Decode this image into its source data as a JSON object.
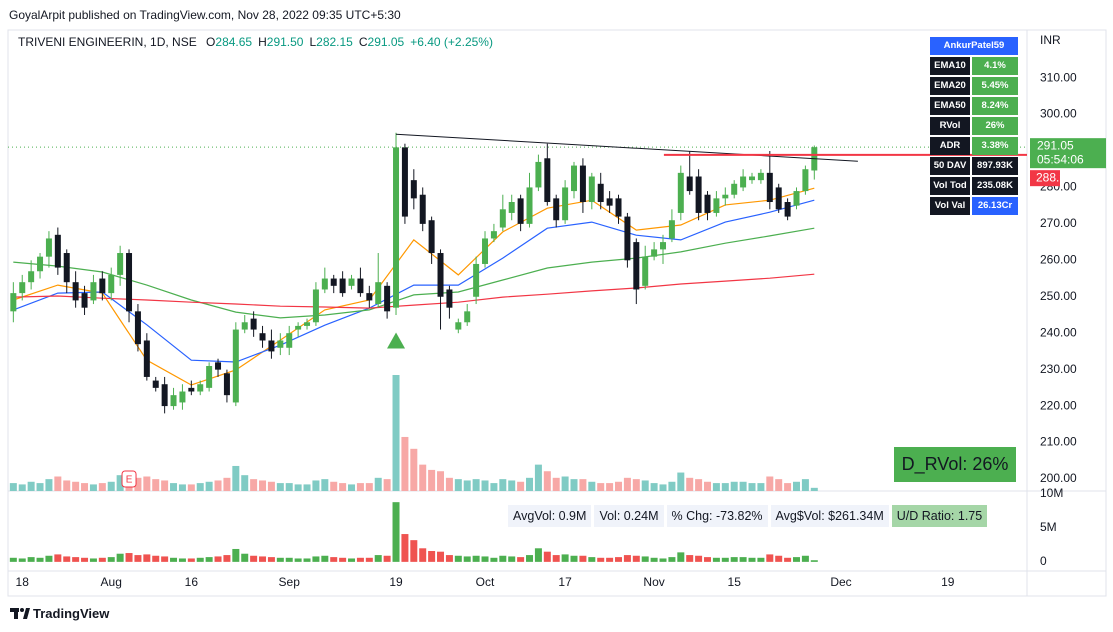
{
  "header": {
    "publisher": "GoyalArpit published on TradingView.com, Nov 28, 2022 09:35 UTC+5:30"
  },
  "chart_data": {
    "type": "candlestick",
    "symbol": "TRIVENI ENGINEERIN, 1D, NSE",
    "ohlc_legend": [
      {
        "key": "O",
        "value": "284.65"
      },
      {
        "key": "H",
        "value": "291.50"
      },
      {
        "key": "L",
        "value": "282.15"
      },
      {
        "key": "C",
        "value": "291.05"
      }
    ],
    "change": "+6.40 (+2.25%)",
    "y_unit": "INR",
    "up_color": "#4caf50",
    "down_color": "#131722",
    "open": [
      246,
      251,
      254,
      257,
      261,
      267,
      262,
      254,
      251,
      249,
      255,
      251,
      256,
      262,
      246,
      238,
      227,
      226,
      220,
      221,
      225,
      224,
      225,
      232,
      229,
      221,
      241,
      244,
      240,
      238,
      236,
      236,
      241,
      242,
      243,
      252,
      255,
      255,
      253,
      255,
      251,
      248,
      253,
      247,
      291,
      282,
      278,
      271,
      262,
      252,
      241,
      243,
      250,
      259,
      266,
      269,
      273,
      277,
      270,
      280,
      288,
      277,
      271,
      279,
      286,
      276,
      281,
      277,
      277,
      272,
      265,
      253,
      261,
      263,
      266,
      273,
      283,
      283,
      278,
      273,
      277,
      278,
      280,
      282,
      282,
      284,
      280,
      276,
      275,
      279,
      284.65
    ],
    "high": [
      254,
      256,
      260,
      262,
      268,
      269,
      263,
      257,
      253,
      256,
      257,
      258,
      264,
      263,
      248,
      240,
      228,
      228,
      225,
      226,
      227,
      227,
      232,
      233,
      230,
      243,
      245,
      246,
      242,
      241,
      240,
      242,
      243,
      244,
      254,
      258,
      256,
      257,
      256,
      258,
      253,
      262,
      254,
      295,
      292,
      285,
      280,
      272,
      263,
      253,
      244,
      248,
      261,
      268,
      270,
      278,
      278,
      278,
      284,
      289,
      292,
      278,
      282,
      287,
      288,
      284,
      284,
      279,
      278,
      273,
      266,
      264,
      265,
      267,
      274,
      286,
      290,
      285,
      279,
      279,
      280,
      282,
      285,
      284,
      285,
      290,
      281,
      277,
      280,
      286,
      291.5
    ],
    "low": [
      243,
      249,
      252,
      255,
      258,
      256,
      251,
      247,
      245,
      248,
      249,
      249,
      253,
      243,
      235,
      227,
      224,
      218,
      219,
      219,
      223,
      223,
      224,
      228,
      221,
      220,
      240,
      239,
      236,
      233,
      234,
      234,
      239,
      241,
      242,
      251,
      251,
      250,
      252,
      250,
      247,
      247,
      244,
      245,
      270,
      274,
      268,
      259,
      241,
      244,
      240,
      242,
      248,
      258,
      265,
      268,
      271,
      268,
      269,
      279,
      275,
      269,
      270,
      277,
      273,
      274,
      274,
      273,
      270,
      258,
      248,
      252,
      260,
      259,
      265,
      271,
      278,
      271,
      271,
      272,
      275,
      277,
      279,
      281,
      281,
      274,
      273,
      271,
      274,
      278,
      282.15
    ],
    "close": [
      251,
      254,
      257,
      261,
      266,
      258,
      254,
      249,
      247,
      254,
      251,
      256,
      262,
      246,
      237,
      228,
      225,
      220,
      223,
      224,
      224,
      226,
      231,
      230,
      223,
      241,
      243,
      241,
      238,
      235,
      238,
      240,
      242,
      243,
      252,
      255,
      253,
      251,
      255,
      251,
      249,
      254,
      246,
      291,
      272,
      277,
      270,
      262,
      250,
      247,
      243,
      246,
      259,
      266,
      268,
      274,
      276,
      270,
      280,
      287,
      276,
      271,
      280,
      286,
      276,
      283,
      276,
      275,
      272,
      260,
      252,
      261,
      263,
      265,
      271,
      284,
      279,
      273,
      273,
      277,
      278,
      281,
      283,
      283,
      284,
      276,
      274,
      272,
      279,
      285,
      291.05
    ],
    "xlim": [
      -0.6,
      113.9
    ],
    "xticks": [
      {
        "value": 1,
        "label": "18"
      },
      {
        "value": 11,
        "label": "Aug"
      },
      {
        "value": 20,
        "label": "16"
      },
      {
        "value": 31,
        "label": "Sep"
      },
      {
        "value": 43,
        "label": "19"
      },
      {
        "value": 53,
        "label": "Oct"
      },
      {
        "value": 62,
        "label": "17"
      },
      {
        "value": 72,
        "label": "Nov"
      },
      {
        "value": 81,
        "label": "15"
      },
      {
        "value": 93,
        "label": "Dec"
      },
      {
        "value": 105,
        "label": "19"
      }
    ],
    "ylim": [
      196.7,
      323.2
    ],
    "yticks": [
      {
        "value": 200,
        "label": "200.00"
      },
      {
        "value": 210,
        "label": "210.00"
      },
      {
        "value": 220,
        "label": "220.00"
      },
      {
        "value": 230,
        "label": "230.00"
      },
      {
        "value": 240,
        "label": "240.00"
      },
      {
        "value": 250,
        "label": "250.00"
      },
      {
        "value": 260,
        "label": "260.00"
      },
      {
        "value": 270,
        "label": "270.00"
      },
      {
        "value": 280,
        "label": "280.00"
      },
      {
        "value": 290,
        "label": "290.00"
      },
      {
        "value": 300,
        "label": "300.00"
      },
      {
        "value": 310,
        "label": "310.00"
      }
    ],
    "ema": [
      {
        "color": "#ff9800",
        "x": [
          0,
          5,
          10,
          15,
          20,
          25,
          30,
          35,
          40,
          45,
          50,
          55,
          60,
          65,
          70,
          75,
          80,
          85,
          90
        ],
        "values": [
          249.1,
          253.2,
          251.0,
          232.6,
          225.8,
          229.9,
          238.1,
          246.4,
          249.1,
          265.6,
          256.0,
          267.8,
          274.3,
          276.5,
          268.3,
          269.7,
          275.2,
          276.5,
          279.8
        ]
      },
      {
        "color": "#2962ff",
        "x": [
          0,
          5,
          10,
          15,
          20,
          25,
          30,
          35,
          40,
          45,
          50,
          55,
          60,
          65,
          70,
          75,
          80,
          85,
          90
        ],
        "values": [
          246.4,
          251.0,
          251.3,
          242.3,
          232.6,
          232.1,
          236.7,
          242.2,
          246.9,
          253.2,
          253.2,
          260.6,
          268.8,
          270.5,
          266.9,
          265.6,
          270.5,
          273.2,
          276.5
        ]
      },
      {
        "color": "#4caf50",
        "x": [
          0,
          5,
          10,
          15,
          20,
          25,
          30,
          35,
          40,
          45,
          50,
          55,
          60,
          65,
          70,
          75,
          80,
          85,
          90
        ],
        "values": [
          259.5,
          258.4,
          256.8,
          253.2,
          249.1,
          245.8,
          244.2,
          245.0,
          246.4,
          250.5,
          251.3,
          254.6,
          257.9,
          259.5,
          260.6,
          262.3,
          264.7,
          266.7,
          268.8
        ]
      },
      {
        "color": "#f23645",
        "x": [
          0,
          5,
          10,
          15,
          20,
          25,
          30,
          35,
          40,
          45,
          50,
          55,
          60,
          65,
          70,
          75,
          80,
          85,
          90
        ],
        "values": [
          249.9,
          250.2,
          249.6,
          249.1,
          248.5,
          248.0,
          247.4,
          247.2,
          246.9,
          247.7,
          248.5,
          249.9,
          250.7,
          251.6,
          252.4,
          253.5,
          254.3,
          255.1,
          256.2
        ]
      }
    ],
    "trendline": {
      "color": "#131722",
      "x": [
        43,
        94.9
      ],
      "values": [
        294.6,
        287.2
      ]
    },
    "level": {
      "value": 288.95,
      "color": "#f23645",
      "x_start": 73.1
    },
    "last_price": {
      "value": 291.05,
      "countdown": "05:54:06",
      "color": "#4caf50"
    },
    "signal_marker": {
      "x": 43,
      "value": 238,
      "color": "#4caf50"
    },
    "earnings_marker": {
      "x": 13,
      "label": "E",
      "color": "#f23645"
    },
    "volume": {
      "values": [
        0.6,
        0.5,
        0.7,
        0.6,
        0.9,
        1.1,
        0.8,
        0.7,
        0.6,
        0.5,
        0.6,
        0.7,
        1.2,
        1.3,
        1.0,
        1.1,
        0.9,
        0.8,
        0.6,
        0.5,
        0.5,
        0.6,
        0.7,
        0.8,
        1.0,
        1.9,
        1.2,
        0.9,
        0.8,
        0.7,
        0.6,
        0.6,
        0.5,
        0.5,
        0.8,
        0.9,
        0.7,
        0.6,
        0.5,
        0.6,
        0.6,
        1.0,
        0.9,
        8.8,
        4.1,
        3.2,
        2.0,
        1.6,
        1.5,
        1.0,
        0.9,
        0.8,
        0.9,
        0.8,
        0.6,
        0.9,
        0.8,
        0.7,
        1.0,
        2.0,
        1.5,
        1.0,
        1.1,
        0.9,
        0.9,
        0.7,
        0.6,
        0.6,
        0.7,
        1.0,
        0.9,
        0.8,
        0.6,
        0.5,
        0.7,
        1.4,
        1.0,
        0.9,
        0.7,
        0.6,
        0.6,
        0.7,
        0.7,
        0.6,
        0.6,
        1.1,
        0.9,
        0.6,
        0.7,
        0.9,
        0.24
      ],
      "overlay_colors": [
        "#80cbc4",
        "#f7a8a6"
      ],
      "pane_colors": [
        "#4caf50",
        "#ef5350"
      ],
      "ylim": [
        -1.2,
        10.3
      ],
      "yticks": [
        0,
        {
          "value": 5,
          "label": "5M"
        },
        {
          "value": 10,
          "label": "10M"
        }
      ],
      "stats": [
        "AvgVol: 0.9M",
        "Vol: 0.24M",
        "% Chg: -73.82%",
        "Avg$Vol: $261.34M",
        "U/D Ratio: 1.75"
      ]
    },
    "rvol_box": "D_RVol: 26%"
  },
  "table": {
    "title": "AnkurPatel59",
    "rows": [
      [
        "EMA10",
        "4.1%"
      ],
      [
        "EMA20",
        "5.45%"
      ],
      [
        "EMA50",
        "8.24%"
      ],
      [
        "RVol",
        "26%"
      ],
      [
        "ADR",
        "3.38%"
      ],
      [
        "50 DAV",
        "897.93K"
      ],
      [
        "Vol Tod",
        "235.08K"
      ],
      [
        "Vol Val",
        "26.13Cr"
      ]
    ]
  },
  "footer": {
    "brand": "TradingView"
  }
}
